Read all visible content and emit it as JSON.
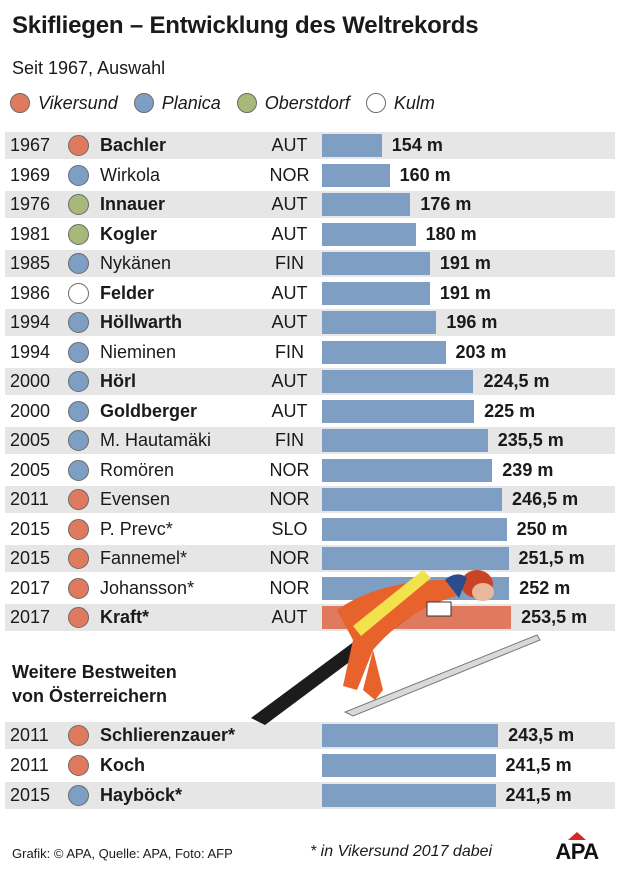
{
  "colors": {
    "Vikersund": "#e07a5f",
    "Planica": "#7f9ec4",
    "Oberstdorf": "#a8b77a",
    "Kulm": "#ffffff",
    "bar": "#7f9ec4",
    "bar_highlight": "#e07a5f"
  },
  "header": {
    "title": "Skifliegen – Entwicklung des Weltrekords",
    "subtitle": "Seit 1967, Auswahl"
  },
  "legend": [
    {
      "label": "Vikersund",
      "color": "#e07a5f"
    },
    {
      "label": "Planica",
      "color": "#7f9ec4"
    },
    {
      "label": "Oberstdorf",
      "color": "#a8b77a"
    },
    {
      "label": "Kulm",
      "color": "#ffffff"
    }
  ],
  "section2": {
    "title_line1": "Weitere Bestweiten",
    "title_line2": "von Österreichern"
  },
  "footer": {
    "credit": "Grafik: © APA, Quelle: APA, Foto: AFP",
    "footnote": "* in Vikersund 2017 dabei",
    "logo": "APA"
  },
  "chart_data": [
    {
      "type": "bar",
      "title": "Skifliegen – Entwicklung des Weltrekords",
      "subtitle": "Seit 1967, Auswahl",
      "unit": "m",
      "rows": [
        {
          "year": "1967",
          "name": "Bachler",
          "country": "AUT",
          "venue": "Vikersund",
          "value": 154,
          "label": "154 m",
          "bold": true
        },
        {
          "year": "1969",
          "name": "Wirkola",
          "country": "NOR",
          "venue": "Planica",
          "value": 160,
          "label": "160 m",
          "bold": false
        },
        {
          "year": "1976",
          "name": "Innauer",
          "country": "AUT",
          "venue": "Oberstdorf",
          "value": 176,
          "label": "176 m",
          "bold": true
        },
        {
          "year": "1981",
          "name": "Kogler",
          "country": "AUT",
          "venue": "Oberstdorf",
          "value": 180,
          "label": "180 m",
          "bold": true
        },
        {
          "year": "1985",
          "name": "Nykänen",
          "country": "FIN",
          "venue": "Planica",
          "value": 191,
          "label": "191 m",
          "bold": false
        },
        {
          "year": "1986",
          "name": "Felder",
          "country": "AUT",
          "venue": "Kulm",
          "value": 191,
          "label": "191 m",
          "bold": true
        },
        {
          "year": "1994",
          "name": "Höllwarth",
          "country": "AUT",
          "venue": "Planica",
          "value": 196,
          "label": "196 m",
          "bold": true
        },
        {
          "year": "1994",
          "name": "Nieminen",
          "country": "FIN",
          "venue": "Planica",
          "value": 203,
          "label": "203 m",
          "bold": false
        },
        {
          "year": "2000",
          "name": "Hörl",
          "country": "AUT",
          "venue": "Planica",
          "value": 224.5,
          "label": "224,5 m",
          "bold": true
        },
        {
          "year": "2000",
          "name": "Goldberger",
          "country": "AUT",
          "venue": "Planica",
          "value": 225,
          "label": "225 m",
          "bold": true
        },
        {
          "year": "2005",
          "name": "M. Hautamäki",
          "country": "FIN",
          "venue": "Planica",
          "value": 235.5,
          "label": "235,5 m",
          "bold": false
        },
        {
          "year": "2005",
          "name": "Romören",
          "country": "NOR",
          "venue": "Planica",
          "value": 239,
          "label": "239 m",
          "bold": false
        },
        {
          "year": "2011",
          "name": "Evensen",
          "country": "NOR",
          "venue": "Vikersund",
          "value": 246.5,
          "label": "246,5 m",
          "bold": false
        },
        {
          "year": "2015",
          "name": "P. Prevc*",
          "country": "SLO",
          "venue": "Vikersund",
          "value": 250,
          "label": "250 m",
          "bold": false
        },
        {
          "year": "2015",
          "name": "Fannemel*",
          "country": "NOR",
          "venue": "Vikersund",
          "value": 251.5,
          "label": "251,5 m",
          "bold": false
        },
        {
          "year": "2017",
          "name": "Johansson*",
          "country": "NOR",
          "venue": "Vikersund",
          "value": 252,
          "label": "252 m",
          "bold": false
        },
        {
          "year": "2017",
          "name": "Kraft*",
          "country": "AUT",
          "venue": "Vikersund",
          "value": 253.5,
          "label": "253,5 m",
          "bold": true,
          "highlight": true
        }
      ]
    },
    {
      "type": "bar",
      "title": "Weitere Bestweiten von Österreichern",
      "unit": "m",
      "rows": [
        {
          "year": "2011",
          "name": "Schlierenzauer*",
          "country": "",
          "venue": "Vikersund",
          "value": 243.5,
          "label": "243,5 m",
          "bold": true
        },
        {
          "year": "2011",
          "name": "Koch",
          "country": "",
          "venue": "Vikersund",
          "value": 241.5,
          "label": "241,5 m",
          "bold": true
        },
        {
          "year": "2015",
          "name": "Hayböck*",
          "country": "",
          "venue": "Planica",
          "value": 241.5,
          "label": "241,5 m",
          "bold": true
        }
      ]
    }
  ]
}
